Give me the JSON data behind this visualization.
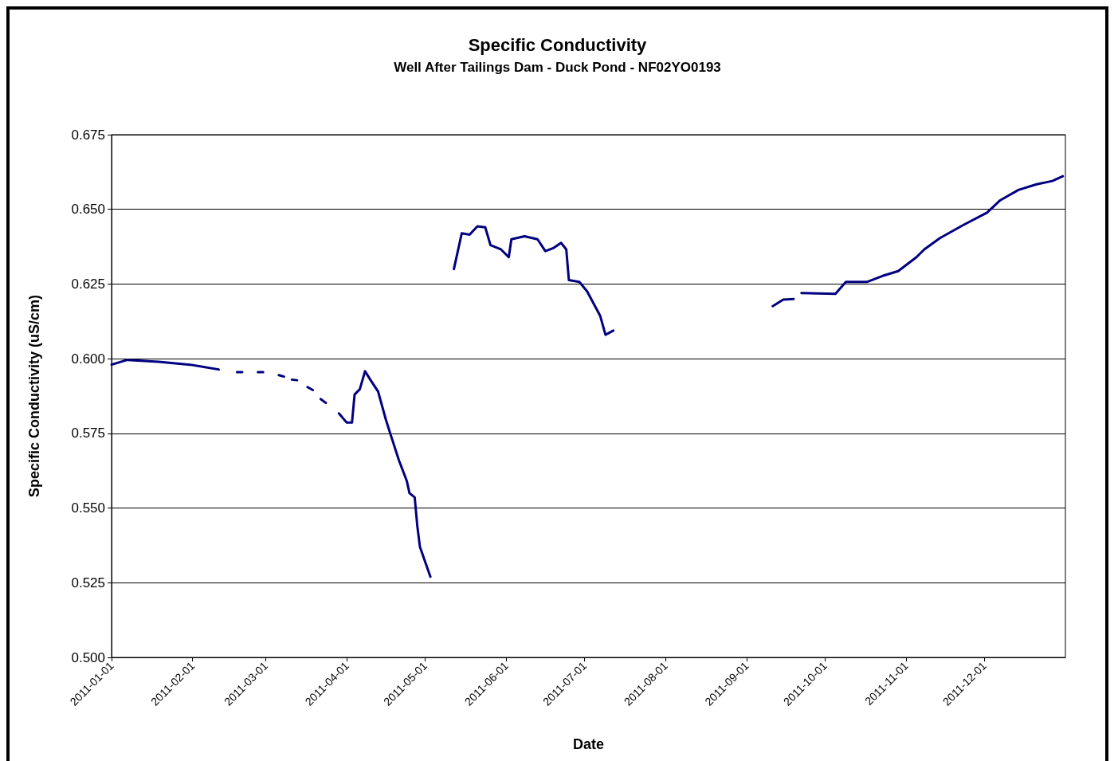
{
  "chart_data": {
    "type": "line",
    "title": "Specific Conductivity",
    "subtitle": "Well After Tailings Dam - Duck Pond - NF02YO0193",
    "xlabel": "Date",
    "ylabel": "Specific Conductivity (uS/cm)",
    "x": [
      "2011-01-01",
      "2011-01-07",
      "2011-01-19",
      "2011-01-31",
      "2011-02-11",
      "2011-02-15",
      "2011-02-18",
      "2011-02-20",
      "2011-02-23",
      "2011-02-26",
      "2011-02-28",
      "2011-03-03",
      "2011-03-06",
      "2011-03-08",
      "2011-03-10",
      "2011-03-11",
      "2011-03-13",
      "2011-03-15",
      "2011-03-17",
      "2011-03-19",
      "2011-03-21",
      "2011-03-22",
      "2011-03-24",
      "2011-03-26",
      "2011-03-29",
      "2011-04-01",
      "2011-04-03",
      "2011-04-04",
      "2011-04-06",
      "2011-04-08",
      "2011-04-10",
      "2011-04-13",
      "2011-04-16",
      "2011-04-18",
      "2011-04-21",
      "2011-04-24",
      "2011-04-25",
      "2011-04-27",
      "2011-04-28",
      "2011-04-29",
      "2011-05-01",
      "2011-05-03",
      "2011-05-07",
      "2011-05-12",
      "2011-05-13",
      "2011-05-15",
      "2011-05-18",
      "2011-05-21",
      "2011-05-24",
      "2011-05-26",
      "2011-05-30",
      "2011-06-02",
      "2011-06-03",
      "2011-06-08",
      "2011-06-13",
      "2011-06-16",
      "2011-06-19",
      "2011-06-22",
      "2011-06-24",
      "2011-06-25",
      "2011-06-29",
      "2011-07-02",
      "2011-07-05",
      "2011-07-07",
      "2011-07-09",
      "2011-07-12",
      "2011-08-10",
      "2011-09-11",
      "2011-09-15",
      "2011-09-19",
      "2011-09-20",
      "2011-09-22",
      "2011-10-05",
      "2011-10-09",
      "2011-10-17",
      "2011-10-23",
      "2011-10-29",
      "2011-11-05",
      "2011-11-08",
      "2011-11-14",
      "2011-11-23",
      "2011-12-02",
      "2011-12-07",
      "2011-12-14",
      "2011-12-21",
      "2011-12-27",
      "2011-12-31"
    ],
    "series": [
      {
        "color": "#000080",
        "values": [
          0.598,
          0.5996,
          0.599,
          0.598,
          0.5964,
          null,
          0.5955,
          0.5955,
          null,
          0.5955,
          0.5955,
          null,
          0.5945,
          0.594,
          null,
          0.593,
          0.5928,
          null,
          0.5905,
          0.5895,
          null,
          0.5865,
          0.5852,
          null,
          0.5817,
          0.5786,
          0.5786,
          0.588,
          0.5898,
          0.5958,
          0.593,
          0.589,
          0.5795,
          0.574,
          0.5659,
          0.559,
          0.555,
          0.5536,
          0.544,
          0.537,
          0.532,
          0.527,
          null,
          0.63,
          0.634,
          0.642,
          0.6415,
          0.6443,
          0.644,
          0.638,
          0.6366,
          0.634,
          0.64,
          0.641,
          0.64,
          0.636,
          0.637,
          0.6388,
          0.6366,
          0.6263,
          0.6257,
          0.6225,
          0.6176,
          0.6143,
          0.608,
          0.6094,
          null,
          0.6176,
          0.6198,
          0.62,
          null,
          0.622,
          0.6217,
          0.6257,
          0.6257,
          0.6277,
          0.6293,
          0.634,
          0.6366,
          0.6404,
          0.6448,
          0.6489,
          0.653,
          0.6565,
          0.6584,
          0.6595,
          0.6611
        ]
      }
    ],
    "xlim": [
      "2011-01-01",
      "2012-01-01"
    ],
    "xticks": [
      "2011-01-01",
      "2011-02-01",
      "2011-03-01",
      "2011-04-01",
      "2011-05-01",
      "2011-06-01",
      "2011-07-01",
      "2011-08-01",
      "2011-09-01",
      "2011-10-01",
      "2011-11-01",
      "2011-12-01"
    ],
    "ylim": [
      0.5,
      0.675
    ],
    "yticks": [
      {
        "value": 0.5,
        "label": "0.500"
      },
      {
        "value": 0.525,
        "label": "0.525"
      },
      {
        "value": 0.55,
        "label": "0.550"
      },
      {
        "value": 0.575,
        "label": "0.575"
      },
      {
        "value": 0.6,
        "label": "0.600"
      },
      {
        "value": 0.625,
        "label": "0.625"
      },
      {
        "value": 0.65,
        "label": "0.650"
      },
      {
        "value": 0.675,
        "label": "0.675"
      }
    ],
    "grid": "y",
    "marker": "none",
    "line_style": "solid"
  }
}
